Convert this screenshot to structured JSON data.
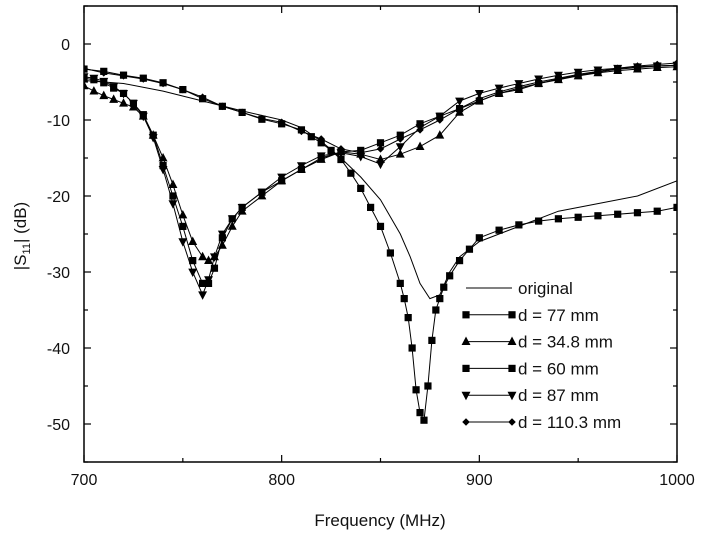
{
  "chart_data": {
    "type": "line",
    "xlabel": "Frequency (MHz)",
    "ylabel": "|S11| (dB)",
    "ylabel_main": "|S",
    "ylabel_sub": "11",
    "ylabel_tail": "| (dB)",
    "xlim": [
      700,
      1000
    ],
    "ylim": [
      -55,
      5
    ],
    "xticks": [
      700,
      800,
      900,
      1000
    ],
    "yticks": [
      0,
      -10,
      -20,
      -30,
      -40,
      -50
    ],
    "xtick_labels": [
      "700",
      "800",
      "900",
      "1000"
    ],
    "ytick_labels": [
      "0",
      "-10",
      "-20",
      "-30",
      "-40",
      "-50"
    ],
    "grid": false,
    "legend_position": "bottom-right",
    "series": [
      {
        "name": "original",
        "marker": "none",
        "x": [
          700,
          720,
          740,
          760,
          780,
          800,
          810,
          820,
          830,
          840,
          850,
          860,
          865,
          870,
          875,
          880,
          885,
          890,
          900,
          920,
          940,
          960,
          980,
          1000
        ],
        "y": [
          -4.8,
          -5.2,
          -6.2,
          -7.5,
          -8.8,
          -10,
          -11,
          -12.8,
          -15,
          -17.5,
          -20.5,
          -25,
          -28,
          -31.5,
          -33.5,
          -33,
          -30,
          -28,
          -26,
          -24,
          -22,
          -21,
          -20,
          -18
        ]
      },
      {
        "name": "d = 77 mm",
        "marker": "square",
        "x": [
          700,
          710,
          720,
          730,
          740,
          750,
          760,
          770,
          780,
          790,
          800,
          810,
          815,
          820,
          825,
          830,
          835,
          840,
          845,
          850,
          855,
          860,
          862,
          864,
          866,
          868,
          870,
          872,
          874,
          876,
          878,
          880,
          882,
          885,
          890,
          895,
          900,
          910,
          920,
          930,
          940,
          950,
          960,
          970,
          980,
          990,
          1000
        ],
        "y": [
          -3.3,
          -3.6,
          -4.1,
          -4.5,
          -5.1,
          -6,
          -7.2,
          -8.2,
          -9,
          -9.9,
          -10.5,
          -11.3,
          -12.2,
          -13,
          -14,
          -15.2,
          -17,
          -19,
          -21.5,
          -24,
          -27.5,
          -31.5,
          -33.5,
          -36,
          -40,
          -45.5,
          -48.5,
          -49.5,
          -45,
          -39,
          -35,
          -33.5,
          -32,
          -30.5,
          -28.5,
          -27,
          -25.5,
          -24.5,
          -23.8,
          -23.3,
          -23,
          -22.8,
          -22.6,
          -22.4,
          -22.2,
          -22,
          -21.5
        ]
      },
      {
        "name": "d = 34.8 mm",
        "marker": "triangle-up",
        "x": [
          700,
          705,
          710,
          715,
          720,
          725,
          730,
          735,
          740,
          745,
          750,
          755,
          760,
          763,
          766,
          770,
          775,
          780,
          790,
          800,
          810,
          820,
          830,
          840,
          850,
          860,
          870,
          880,
          890,
          900,
          910,
          920,
          930,
          940,
          950,
          960,
          970,
          980,
          990,
          1000
        ],
        "y": [
          -5.5,
          -6.2,
          -6.8,
          -7.3,
          -7.8,
          -8.3,
          -9.5,
          -12,
          -15,
          -18.5,
          -22.5,
          -26,
          -28,
          -28.5,
          -28,
          -26.5,
          -24,
          -22,
          -20,
          -18,
          -16.5,
          -15.2,
          -14.2,
          -14.5,
          -15.2,
          -14.5,
          -13.5,
          -12,
          -9,
          -7.5,
          -6.5,
          -6,
          -5.2,
          -4.7,
          -4.2,
          -3.8,
          -3.5,
          -3.3,
          -3.1,
          -3
        ]
      },
      {
        "name": "d = 60 mm",
        "marker": "square",
        "x": [
          700,
          705,
          710,
          715,
          720,
          725,
          730,
          735,
          740,
          745,
          750,
          755,
          760,
          763,
          766,
          770,
          775,
          780,
          790,
          800,
          810,
          820,
          830,
          840,
          850,
          860,
          870,
          880,
          890,
          900,
          910,
          920,
          930,
          940,
          950,
          960,
          970,
          980,
          990,
          1000
        ],
        "y": [
          -4.5,
          -4.7,
          -5.1,
          -5.8,
          -6.5,
          -7.8,
          -9.3,
          -12,
          -16,
          -20,
          -24,
          -28.5,
          -31.5,
          -31.5,
          -29.5,
          -25.5,
          -23,
          -21.5,
          -19.5,
          -18,
          -16.5,
          -15,
          -14.2,
          -14,
          -13,
          -12,
          -10.5,
          -9.5,
          -8.5,
          -7.5,
          -6.5,
          -5.8,
          -5.2,
          -4.6,
          -4.1,
          -3.7,
          -3.3,
          -3.1,
          -2.9,
          -2.8
        ]
      },
      {
        "name": "d = 87 mm",
        "marker": "triangle-down",
        "x": [
          700,
          705,
          710,
          715,
          720,
          725,
          730,
          735,
          740,
          745,
          750,
          755,
          760,
          763,
          766,
          770,
          775,
          780,
          790,
          800,
          810,
          820,
          830,
          840,
          850,
          860,
          870,
          880,
          890,
          900,
          910,
          920,
          930,
          940,
          950,
          960,
          970,
          980,
          990,
          1000
        ],
        "y": [
          -4.3,
          -4.5,
          -4.9,
          -5.6,
          -6.5,
          -7.8,
          -9.5,
          -12.3,
          -16.5,
          -21,
          -26,
          -30,
          -33,
          -31,
          -28,
          -25,
          -23,
          -21.5,
          -19.5,
          -17.5,
          -16,
          -14.7,
          -14.3,
          -14.8,
          -15.8,
          -13.5,
          -11,
          -9.5,
          -7.5,
          -6.5,
          -5.8,
          -5.2,
          -4.6,
          -4.1,
          -3.7,
          -3.4,
          -3.2,
          -3,
          -2.9,
          -2.8
        ]
      },
      {
        "name": "d = 110.3 mm",
        "marker": "diamond",
        "x": [
          700,
          710,
          720,
          730,
          740,
          750,
          760,
          770,
          780,
          790,
          800,
          810,
          820,
          830,
          840,
          850,
          860,
          870,
          880,
          890,
          900,
          910,
          920,
          930,
          940,
          950,
          960,
          970,
          980,
          990,
          1000
        ],
        "y": [
          -3.2,
          -3.8,
          -4.2,
          -4.6,
          -5.2,
          -6,
          -7,
          -8.2,
          -9,
          -9.8,
          -10.3,
          -11.5,
          -12.5,
          -13.8,
          -14.3,
          -13.8,
          -12.5,
          -11.3,
          -10,
          -8.5,
          -7.2,
          -6.3,
          -5.6,
          -5,
          -4.5,
          -4,
          -3.6,
          -3.2,
          -2.9,
          -2.7,
          -2.5
        ]
      }
    ]
  }
}
